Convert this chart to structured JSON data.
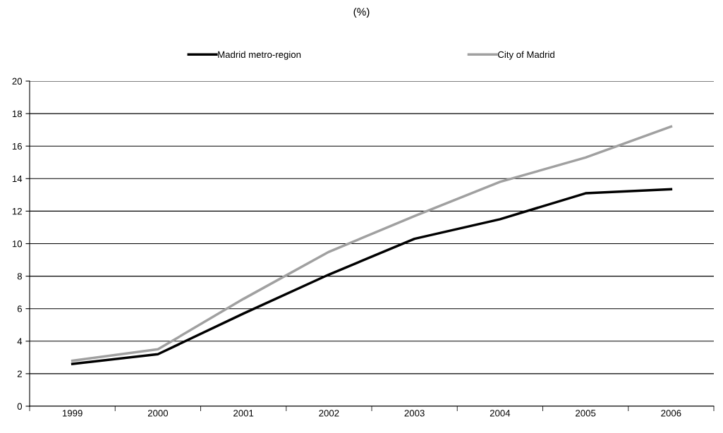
{
  "chart_data": {
    "type": "line",
    "title": "(%)",
    "categories": [
      "1999",
      "2000",
      "2001",
      "2002",
      "2003",
      "2004",
      "2005",
      "2006"
    ],
    "series": [
      {
        "name": "Madrid metro-region",
        "color": "#000000",
        "values": [
          2.6,
          3.2,
          5.7,
          8.1,
          10.3,
          11.5,
          13.1,
          13.35
        ]
      },
      {
        "name": "City of Madrid",
        "color": "#a0a0a0",
        "values": [
          2.8,
          3.5,
          6.6,
          9.5,
          11.7,
          13.8,
          15.3,
          17.2
        ]
      }
    ],
    "ylim": [
      0,
      20
    ],
    "yticks": [
      0,
      2,
      4,
      6,
      8,
      10,
      12,
      14,
      16,
      18,
      20
    ],
    "grid": "y",
    "legend": "top",
    "marker": "none",
    "line_style": "solid"
  }
}
